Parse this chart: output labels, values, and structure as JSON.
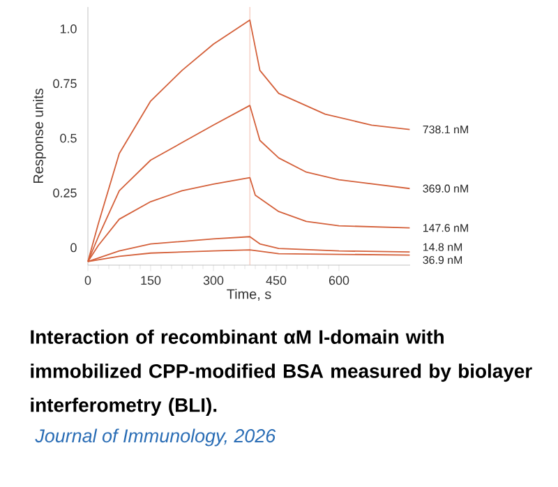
{
  "chart_data": {
    "type": "line",
    "xlabel": "Time, s",
    "ylabel": "Response units",
    "xlim": [
      0,
      770
    ],
    "ylim": [
      -0.08,
      1.1
    ],
    "xticks": [
      0,
      150,
      300,
      450,
      600
    ],
    "yticks": [
      0,
      0.25,
      0.5,
      0.75,
      {
        "value": 1.0,
        "label": "1.0"
      }
    ],
    "grid": false,
    "legend": false,
    "marker": "none",
    "ref_lines": [
      {
        "axis": "x",
        "value": 387,
        "color": "#f2b8a8"
      }
    ],
    "annotations": [
      "Interaction of recombinant αM I-domain with immobilized CPP-modified BSA measured by biolayer interferometry (BLI).",
      "*Journal of Immunology, 2026*"
    ],
    "series": [
      {
        "name": "738.1 nM",
        "color": "#d4603a",
        "x": [
          0,
          25,
          75,
          150,
          225,
          300,
          387,
          411,
          456,
          567,
          678,
          769
        ],
        "values": [
          -0.064,
          0.11,
          0.43,
          0.67,
          0.81,
          0.93,
          1.04,
          0.81,
          0.705,
          0.61,
          0.56,
          0.54
        ]
      },
      {
        "name": "369.0 nM",
        "color": "#d4603a",
        "x": [
          0,
          25,
          75,
          150,
          225,
          300,
          387,
          411,
          456,
          522,
          600,
          769
        ],
        "values": [
          -0.064,
          0.05,
          0.26,
          0.4,
          0.48,
          0.56,
          0.65,
          0.49,
          0.41,
          0.345,
          0.31,
          0.27
        ]
      },
      {
        "name": "147.6 nM",
        "color": "#d4603a",
        "x": [
          0,
          25,
          75,
          150,
          225,
          300,
          387,
          400,
          456,
          522,
          600,
          769
        ],
        "values": [
          -0.064,
          0.01,
          0.13,
          0.21,
          0.26,
          0.29,
          0.32,
          0.24,
          0.165,
          0.12,
          0.1,
          0.09
        ]
      },
      {
        "name": "14.8 nM",
        "color": "#d4603a",
        "x": [
          0,
          75,
          150,
          300,
          387,
          411,
          456,
          600,
          769
        ],
        "values": [
          -0.064,
          -0.015,
          0.017,
          0.04,
          0.05,
          0.017,
          -0.004,
          -0.015,
          -0.02
        ]
      },
      {
        "name": "36.9 nM",
        "color": "#d4603a",
        "x": [
          0,
          75,
          150,
          300,
          387,
          456,
          769
        ],
        "values": [
          -0.064,
          -0.04,
          -0.025,
          -0.015,
          -0.01,
          -0.028,
          -0.034
        ]
      }
    ]
  }
}
